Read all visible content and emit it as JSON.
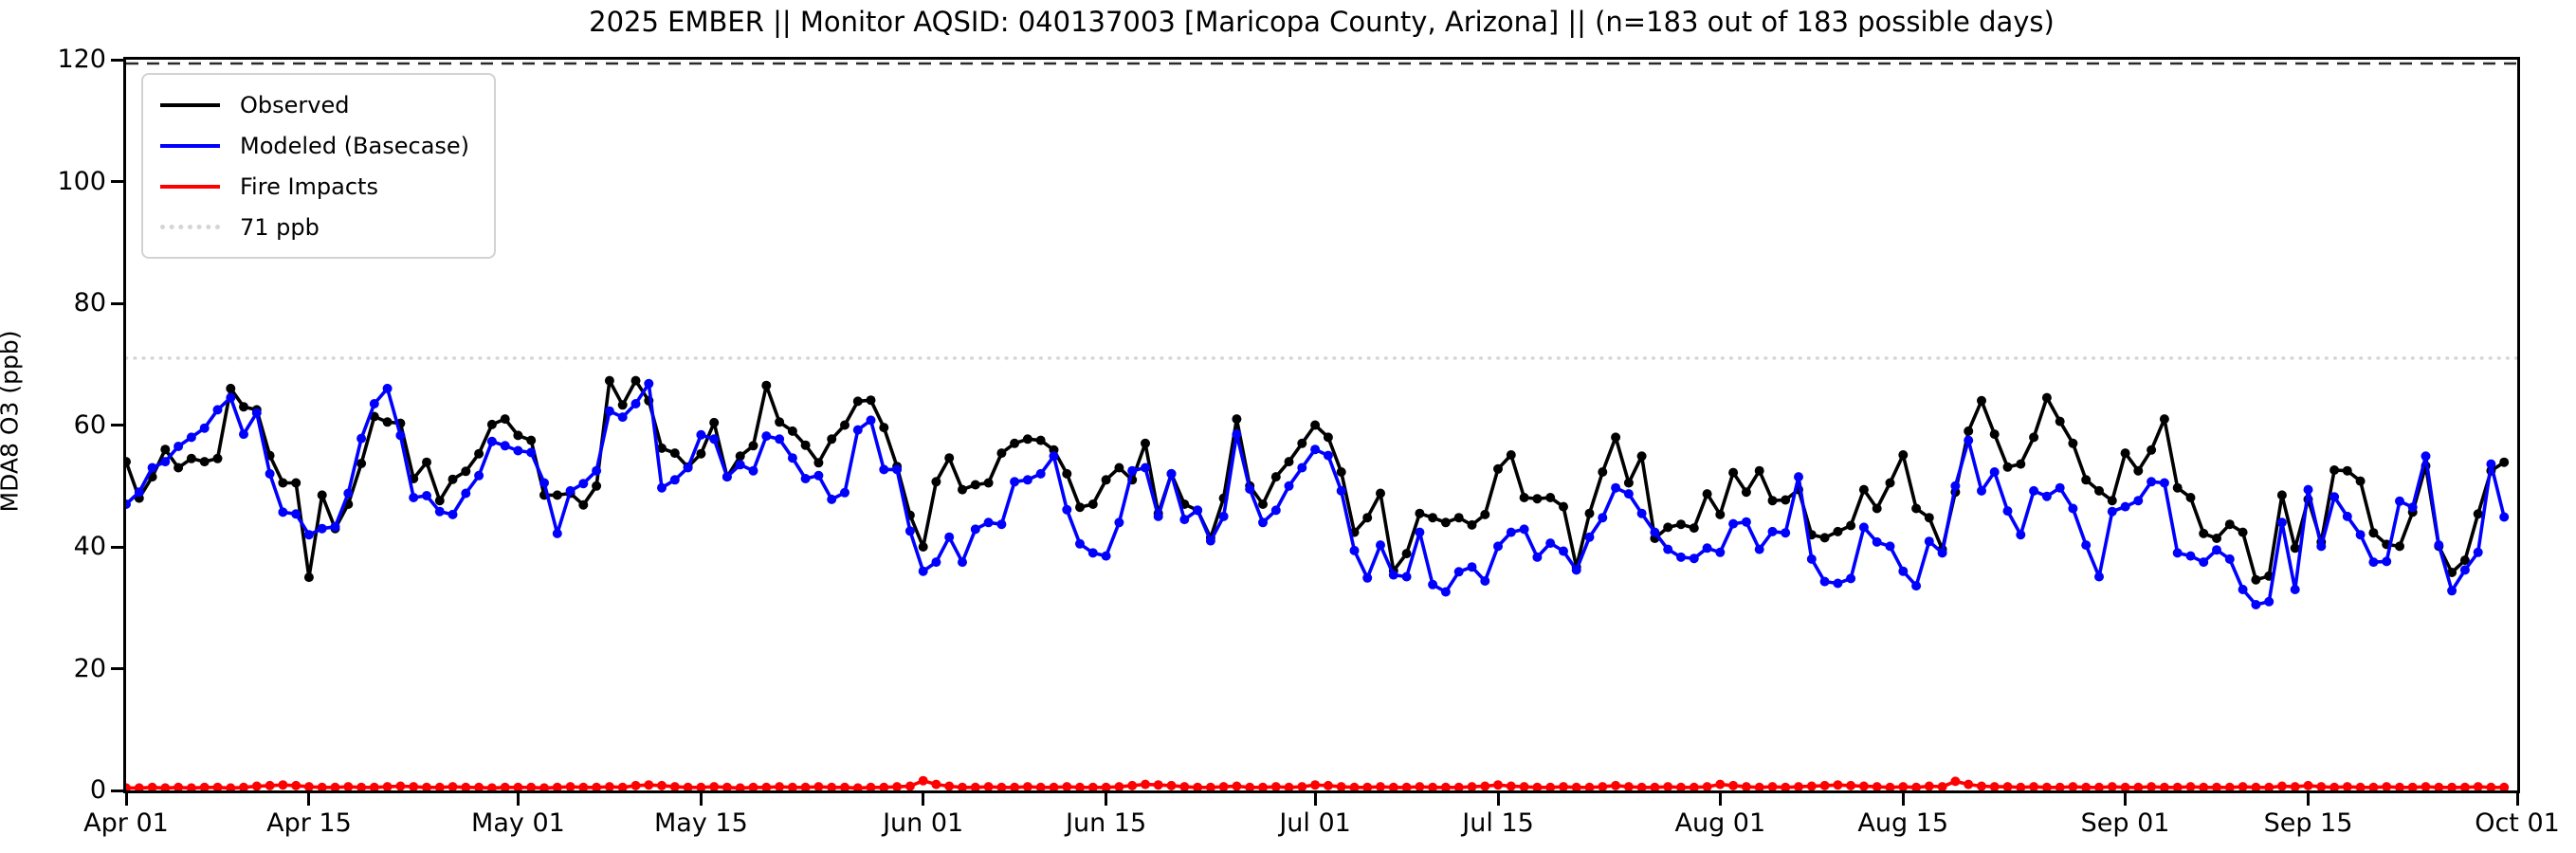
{
  "title": "2025 EMBER || Monitor AQSID: 040137003 [Maricopa County, Arizona] || (n=183 out of 183 possible days)",
  "axes": {
    "ylabel": "MDA8 O3 (ppb)",
    "y_ticks": [
      0,
      20,
      40,
      60,
      80,
      100,
      120
    ],
    "x_start_label": "Apr 01",
    "x_end_label": "Oct 01"
  },
  "colors": {
    "observed": "#000000",
    "modeled": "#0000ff",
    "fire": "#ff0000",
    "threshold": "#d5d5d5",
    "axis": "#000000",
    "background": "#ffffff"
  },
  "chart_data": {
    "type": "line",
    "title": "2025 EMBER || Monitor AQSID: 040137003 [Maricopa County, Arizona] || (n=183 out of 183 possible days)",
    "xlabel": "",
    "ylabel": "MDA8 O3 (ppb)",
    "ylim": [
      0,
      120
    ],
    "x_days_total": 183,
    "x_range": [
      "Apr 01",
      "Oct 01"
    ],
    "grid": false,
    "legend_position": "upper-left",
    "x_ticks": [
      {
        "day": 0,
        "label": "Apr 01"
      },
      {
        "day": 14,
        "label": "Apr 15"
      },
      {
        "day": 30,
        "label": "May 01"
      },
      {
        "day": 44,
        "label": "May 15"
      },
      {
        "day": 61,
        "label": "Jun 01"
      },
      {
        "day": 75,
        "label": "Jun 15"
      },
      {
        "day": 91,
        "label": "Jul 01"
      },
      {
        "day": 105,
        "label": "Jul 15"
      },
      {
        "day": 122,
        "label": "Aug 01"
      },
      {
        "day": 136,
        "label": "Aug 15"
      },
      {
        "day": 153,
        "label": "Sep 01"
      },
      {
        "day": 167,
        "label": "Sep 15"
      },
      {
        "day": 183,
        "label": "Oct 01"
      }
    ],
    "threshold_line": {
      "value": 71,
      "label": "71 ppb",
      "color": "#d5d5d5",
      "style": "dotted"
    },
    "series": [
      {
        "name": "Observed",
        "color": "#000000",
        "marker": "circle",
        "values": [
          54,
          48,
          51.5,
          56,
          53,
          54.5,
          54,
          54.5,
          66,
          63,
          62.5,
          55,
          50.5,
          50.5,
          35,
          48.5,
          43,
          47,
          53.7,
          61.4,
          60.5,
          60.3,
          51.2,
          53.9,
          47.6,
          51.1,
          52.4,
          55.3,
          60.1,
          61,
          58.3,
          57.5,
          48.5,
          48.5,
          48.8,
          46.9,
          50,
          67.3,
          63.3,
          67.3,
          64,
          56.2,
          55.4,
          53.1,
          55.3,
          60.4,
          51.5,
          54.9,
          56.6,
          66.5,
          60.5,
          59,
          56.7,
          53.8,
          57.7,
          60,
          63.9,
          64.1,
          59.6,
          53.2,
          45.2,
          40,
          50.7,
          54.6,
          49.4,
          50.2,
          50.5,
          55.4,
          57,
          57.7,
          57.5,
          55.9,
          52,
          46.5,
          47,
          51,
          53,
          51,
          57,
          45.5,
          52,
          47,
          46,
          41.5,
          48,
          61,
          50,
          47,
          51.5,
          54,
          57,
          60,
          58,
          52.3,
          42.4,
          44.8,
          48.8,
          36.1,
          38.9,
          45.5,
          44.8,
          44,
          44.8,
          43.6,
          45.3,
          52.8,
          55.1,
          48.1,
          47.9,
          48.1,
          46.6,
          36.7,
          45.5,
          52.3,
          58,
          50.5,
          54.9,
          41.4,
          43.2,
          43.7,
          43.1,
          48.7,
          45.3,
          52.2,
          49,
          52.5,
          47.6,
          47.7,
          49.4,
          42,
          41.5,
          42.5,
          43.5,
          49.4,
          46.3,
          50.5,
          55.1,
          46.3,
          44.8,
          39.6,
          49,
          59,
          64,
          58.5,
          53.1,
          53.6,
          58,
          64.5,
          60.6,
          57,
          51,
          49.2,
          47.6,
          55.4,
          52.5,
          55.9,
          61,
          49.7,
          48.1,
          42.2,
          41.4,
          43.7,
          42.4,
          34.6,
          35.2,
          48.5,
          39.8,
          47.8,
          40.8,
          52.6,
          52.5,
          50.8,
          42.3,
          40.4,
          40.1,
          45.7,
          53.3,
          40.1,
          35.8,
          37.8,
          45.4,
          52.5,
          53.9
        ]
      },
      {
        "name": "Modeled (Basecase)",
        "color": "#0000ff",
        "marker": "circle",
        "values": [
          47,
          49,
          53,
          54,
          56.5,
          58,
          59.5,
          62.5,
          64.5,
          58.5,
          62,
          52,
          45.7,
          45.4,
          42,
          43,
          43.3,
          48.8,
          57.8,
          63.5,
          66,
          58.3,
          48.1,
          48.4,
          45.8,
          45.3,
          48.8,
          51.7,
          57.3,
          56.6,
          55.8,
          55.5,
          50.5,
          42.2,
          49.2,
          50.4,
          52.5,
          62.3,
          61.3,
          63.5,
          66.8,
          49.7,
          51,
          53,
          58.4,
          57.7,
          51.5,
          53.5,
          52.5,
          58.2,
          57.7,
          54.6,
          51.2,
          51.7,
          47.8,
          48.9,
          59.2,
          60.8,
          52.7,
          52.7,
          42.6,
          36,
          37.5,
          41.6,
          37.5,
          42.9,
          44,
          43.7,
          50.7,
          51,
          52,
          54.9,
          46.1,
          40.5,
          39,
          38.5,
          44,
          52.5,
          53,
          45,
          52,
          44.5,
          46,
          41,
          45,
          58.5,
          49.5,
          44,
          46,
          50,
          53,
          56,
          55,
          49.2,
          39.4,
          34.9,
          40.3,
          35.4,
          35.1,
          42.4,
          33.8,
          32.6,
          35.9,
          36.7,
          34.4,
          40.1,
          42.4,
          42.9,
          38.3,
          40.6,
          39.3,
          36.2,
          41.6,
          44.8,
          49.7,
          48.7,
          45.5,
          42.4,
          39.6,
          38.3,
          38.1,
          39.8,
          39.1,
          43.8,
          44.1,
          39.6,
          42.5,
          42.3,
          51.5,
          38,
          34.3,
          34,
          34.8,
          43.2,
          40.8,
          40.1,
          36,
          33.6,
          40.9,
          39,
          50,
          57.5,
          49.2,
          52.3,
          45.9,
          42,
          49.2,
          48.3,
          49.7,
          46.3,
          40.3,
          35.1,
          45.8,
          46.6,
          47.6,
          50.7,
          50.5,
          39,
          38.5,
          37.5,
          39.5,
          38,
          33,
          30.5,
          31,
          44,
          33,
          49.4,
          40.1,
          48.2,
          45,
          42,
          37.5,
          37.6,
          47.5,
          46.5,
          54.9,
          40.3,
          32.8,
          36.2,
          39.1,
          53.6,
          44.9
        ]
      },
      {
        "name": "Fire Impacts",
        "color": "#ff0000",
        "marker": "circle",
        "values": [
          0.4,
          0.4,
          0.5,
          0.4,
          0.5,
          0.4,
          0.5,
          0.5,
          0.4,
          0.5,
          0.7,
          0.8,
          0.9,
          0.8,
          0.6,
          0.5,
          0.5,
          0.6,
          0.5,
          0.5,
          0.6,
          0.7,
          0.6,
          0.5,
          0.5,
          0.6,
          0.5,
          0.5,
          0.4,
          0.5,
          0.5,
          0.5,
          0.4,
          0.5,
          0.6,
          0.5,
          0.5,
          0.6,
          0.5,
          0.8,
          0.9,
          0.8,
          0.6,
          0.5,
          0.5,
          0.6,
          0.5,
          0.4,
          0.5,
          0.5,
          0.6,
          0.5,
          0.5,
          0.6,
          0.5,
          0.5,
          0.4,
          0.5,
          0.5,
          0.6,
          0.7,
          1.6,
          1.0,
          0.7,
          0.5,
          0.5,
          0.6,
          0.5,
          0.5,
          0.6,
          0.5,
          0.5,
          0.6,
          0.5,
          0.5,
          0.5,
          0.6,
          0.8,
          1.0,
          0.9,
          0.8,
          0.6,
          0.5,
          0.5,
          0.6,
          0.7,
          0.5,
          0.5,
          0.6,
          0.5,
          0.6,
          0.9,
          0.8,
          0.6,
          0.5,
          0.5,
          0.6,
          0.5,
          0.5,
          0.6,
          0.5,
          0.5,
          0.5,
          0.6,
          0.7,
          0.9,
          0.7,
          0.6,
          0.5,
          0.5,
          0.6,
          0.5,
          0.5,
          0.6,
          0.8,
          0.6,
          0.5,
          0.5,
          0.6,
          0.5,
          0.5,
          0.6,
          1.0,
          0.8,
          0.6,
          0.5,
          0.6,
          0.5,
          0.6,
          0.7,
          0.8,
          0.9,
          0.8,
          0.7,
          0.6,
          0.5,
          0.6,
          0.5,
          0.7,
          0.6,
          1.5,
          1.0,
          0.7,
          0.6,
          0.6,
          0.5,
          0.6,
          0.5,
          0.5,
          0.6,
          0.5,
          0.5,
          0.6,
          0.5,
          0.5,
          0.6,
          0.5,
          0.5,
          0.6,
          0.5,
          0.5,
          0.5,
          0.6,
          0.5,
          0.5,
          0.7,
          0.6,
          0.8,
          0.6,
          0.5,
          0.6,
          0.5,
          0.5,
          0.6,
          0.5,
          0.5,
          0.6,
          0.5,
          0.5,
          0.5,
          0.6,
          0.5,
          0.5
        ]
      }
    ]
  }
}
